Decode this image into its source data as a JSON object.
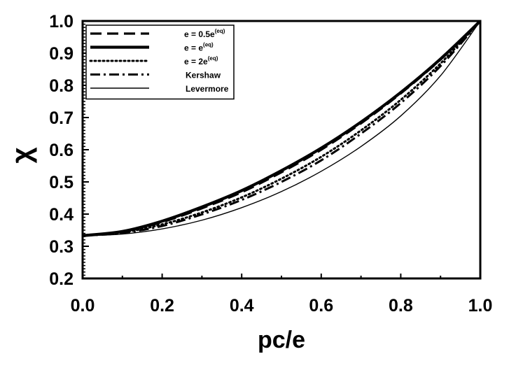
{
  "chart_data": {
    "type": "line",
    "title": "",
    "xlabel": "pc/e",
    "ylabel": "χ",
    "xlim": [
      0.0,
      1.0
    ],
    "ylim": [
      0.2,
      1.0
    ],
    "x_ticks": [
      "0.0",
      "0.2",
      "0.4",
      "0.6",
      "0.8",
      "1.0"
    ],
    "y_ticks": [
      "0.2",
      "0.3",
      "0.4",
      "0.5",
      "0.6",
      "0.7",
      "0.8",
      "0.9",
      "1.0"
    ],
    "grid": false,
    "legend_position": "top-left",
    "x": [
      0.0,
      0.1,
      0.2,
      0.3,
      0.4,
      0.5,
      0.6,
      0.7,
      0.8,
      0.9,
      1.0
    ],
    "series": [
      {
        "name": "e = 0.5e(eq)",
        "legend_base": "e = 0.5e",
        "legend_sup": "(eq)",
        "style": "dashed",
        "values": [
          0.333,
          0.345,
          0.375,
          0.418,
          0.468,
          0.53,
          0.6,
          0.682,
          0.775,
          0.88,
          1.0
        ]
      },
      {
        "name": "e = e(eq)",
        "legend_base": "e = e",
        "legend_sup": "(eq)",
        "style": "thick-solid",
        "values": [
          0.333,
          0.346,
          0.378,
          0.422,
          0.473,
          0.535,
          0.605,
          0.686,
          0.778,
          0.882,
          1.0
        ]
      },
      {
        "name": "e = 2e(eq)",
        "legend_base": "e = 2e",
        "legend_sup": "(eq)",
        "style": "dotted",
        "values": [
          0.333,
          0.343,
          0.368,
          0.405,
          0.452,
          0.51,
          0.578,
          0.66,
          0.755,
          0.868,
          1.0
        ]
      },
      {
        "name": "Kershaw",
        "legend_base": "Kershaw",
        "legend_sup": "",
        "style": "dash-dot",
        "values": [
          0.333,
          0.341,
          0.363,
          0.399,
          0.444,
          0.5,
          0.567,
          0.65,
          0.745,
          0.86,
          1.0
        ]
      },
      {
        "name": "Levermore",
        "legend_base": "Levermore",
        "legend_sup": "",
        "style": "thin-solid",
        "values": [
          0.333,
          0.338,
          0.354,
          0.381,
          0.42,
          0.47,
          0.533,
          0.61,
          0.705,
          0.83,
          1.0
        ]
      }
    ]
  }
}
